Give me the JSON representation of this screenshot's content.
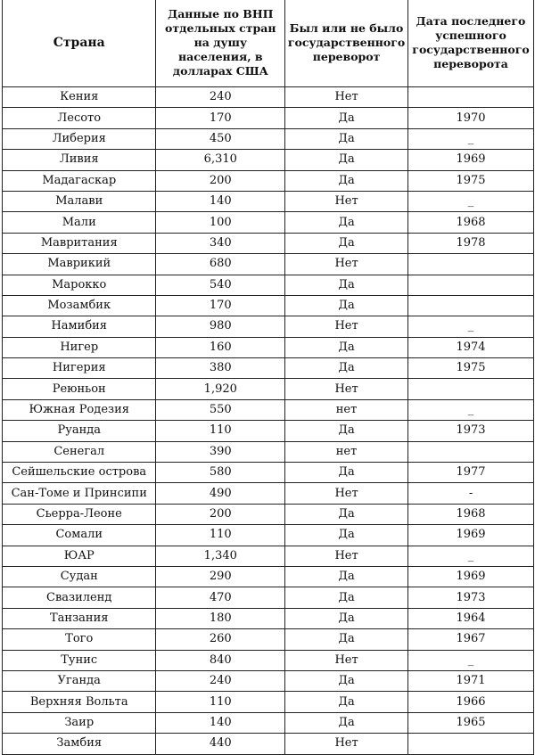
{
  "headers": [
    "Страна",
    "Данные по ВНП отдельных стран на душу населения, в долларах США",
    "Был или не было государственного переворот",
    "Дата последнего успешного государственного переворота"
  ],
  "rows": [
    [
      "Кения",
      "240",
      "Нет",
      ""
    ],
    [
      "Лесото",
      "170",
      "Да",
      "1970"
    ],
    [
      "Либерия",
      "450",
      "Да",
      "_"
    ],
    [
      "Ливия",
      "6,310",
      "Да",
      "1969"
    ],
    [
      "Мадагаскар",
      "200",
      "Да",
      "1975"
    ],
    [
      "Малави",
      "140",
      "Нет",
      "_"
    ],
    [
      "Мали",
      "100",
      "Да",
      "1968"
    ],
    [
      "Мавритания",
      "340",
      "Да",
      "1978"
    ],
    [
      "Маврикий",
      "680",
      "Нет",
      ""
    ],
    [
      "Марокко",
      "540",
      "Да",
      ""
    ],
    [
      "Мозамбик",
      "170",
      "Да",
      ""
    ],
    [
      "Намибия",
      "980",
      "Нет",
      "_"
    ],
    [
      "Нигер",
      "160",
      "Да",
      "1974"
    ],
    [
      "Нигерия",
      "380",
      "Да",
      "1975"
    ],
    [
      "Реюньон",
      "1,920",
      "Нет",
      ""
    ],
    [
      "Южная Родезия",
      "550",
      "нет",
      "_"
    ],
    [
      "Руанда",
      "110",
      "Да",
      "1973"
    ],
    [
      "Сенегал",
      "390",
      "нет",
      ""
    ],
    [
      "Сейшельские острова",
      "580",
      "Да",
      "1977"
    ],
    [
      "Сан-Томе и Принсипи",
      "490",
      "Нет",
      "-"
    ],
    [
      "Сьерра-Леоне",
      "200",
      "Да",
      "1968"
    ],
    [
      "Сомали",
      "110",
      "Да",
      "1969"
    ],
    [
      "ЮАР",
      "1,340",
      "Нет",
      "_"
    ],
    [
      "Судан",
      "290",
      "Да",
      "1969"
    ],
    [
      "Свазиленд",
      "470",
      "Да",
      "1973"
    ],
    [
      "Танзания",
      "180",
      "Да",
      "1964"
    ],
    [
      "Того",
      "260",
      "Да",
      "1967"
    ],
    [
      "Тунис",
      "840",
      "Нет",
      "_"
    ],
    [
      "Уганда",
      "240",
      "Да",
      "1971"
    ],
    [
      "Верхняя Вольта",
      "110",
      "Да",
      "1966"
    ],
    [
      "Заир",
      "140",
      "Да",
      "1965"
    ],
    [
      "Замбия",
      "440",
      "Нет",
      ""
    ]
  ]
}
